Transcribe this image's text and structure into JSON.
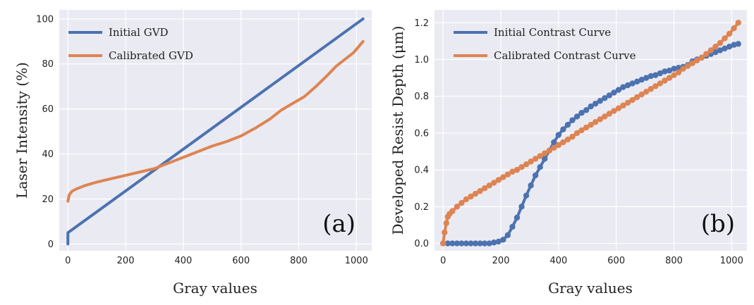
{
  "colors": {
    "initial": "#4c72b0",
    "calibrated": "#dd8452",
    "plot_bg": "#eaeaf2",
    "grid": "#ffffff"
  },
  "chart_data": [
    {
      "type": "line",
      "panel": "(a)",
      "xlabel": "Gray values",
      "ylabel": "Laser Intensity (%)",
      "xlim": [
        -30,
        1053
      ],
      "ylim": [
        -3,
        104
      ],
      "xticks": [
        0,
        200,
        400,
        600,
        800,
        1000
      ],
      "yticks": [
        0,
        20,
        40,
        60,
        80,
        100
      ],
      "grid": true,
      "legend_position": "top-left",
      "series": [
        {
          "name": "Initial GVD",
          "color": "#4c72b0",
          "x": [
            0,
            0,
            1023
          ],
          "y": [
            0,
            5,
            100
          ]
        },
        {
          "name": "Calibrated GVD",
          "color": "#dd8452",
          "x": [
            0,
            5,
            15,
            30,
            60,
            100,
            150,
            200,
            250,
            300,
            340,
            400,
            450,
            500,
            550,
            600,
            650,
            700,
            740,
            780,
            820,
            860,
            900,
            930,
            960,
            990,
            1010,
            1023
          ],
          "y": [
            19,
            22,
            23.5,
            24.5,
            26,
            27.5,
            29,
            30.5,
            32,
            33.5,
            35.5,
            38.5,
            41,
            43.5,
            45.5,
            48,
            51.5,
            55.5,
            59.5,
            62.5,
            65.5,
            70,
            75,
            79,
            82,
            85,
            88,
            90
          ]
        }
      ]
    },
    {
      "type": "line",
      "panel": "(b)",
      "xlabel": "Gray values",
      "ylabel": "Developed Resist Depth (μm)",
      "xlim": [
        -30,
        1053
      ],
      "ylim": [
        -0.04,
        1.27
      ],
      "xticks": [
        0,
        200,
        400,
        600,
        800,
        1000
      ],
      "yticks": [
        0.0,
        0.2,
        0.4,
        0.6,
        0.8,
        1.0,
        1.2
      ],
      "ytick_labels": [
        "0.0",
        "0.2",
        "0.4",
        "0.6",
        "0.8",
        "1.0",
        "1.2"
      ],
      "grid": true,
      "legend_position": "top-left",
      "markers": true,
      "series": [
        {
          "name": "Initial Contrast Curve",
          "color": "#4c72b0",
          "x": [
            0,
            16,
            32,
            48,
            64,
            80,
            96,
            112,
            128,
            144,
            160,
            176,
            192,
            208,
            224,
            240,
            256,
            272,
            288,
            304,
            320,
            336,
            352,
            368,
            384,
            400,
            416,
            432,
            448,
            464,
            480,
            496,
            512,
            528,
            544,
            560,
            576,
            592,
            608,
            624,
            640,
            656,
            672,
            688,
            704,
            720,
            736,
            752,
            768,
            784,
            800,
            816,
            832,
            848,
            864,
            880,
            896,
            912,
            928,
            944,
            960,
            976,
            992,
            1008,
            1023
          ],
          "y": [
            0,
            0,
            0,
            0,
            0,
            0,
            0,
            0,
            0,
            0,
            0,
            0.005,
            0.01,
            0.02,
            0.045,
            0.09,
            0.14,
            0.2,
            0.26,
            0.315,
            0.37,
            0.415,
            0.46,
            0.505,
            0.55,
            0.59,
            0.62,
            0.645,
            0.67,
            0.69,
            0.71,
            0.725,
            0.745,
            0.76,
            0.775,
            0.79,
            0.805,
            0.82,
            0.835,
            0.85,
            0.86,
            0.87,
            0.88,
            0.89,
            0.9,
            0.91,
            0.915,
            0.925,
            0.935,
            0.94,
            0.95,
            0.955,
            0.96,
            0.97,
            0.99,
            1.0,
            1.01,
            1.02,
            1.03,
            1.04,
            1.05,
            1.06,
            1.07,
            1.08,
            1.085
          ]
        },
        {
          "name": "Calibrated Contrast Curve",
          "color": "#dd8452",
          "x": [
            0,
            5,
            11,
            16,
            22,
            32,
            48,
            64,
            80,
            96,
            112,
            128,
            144,
            160,
            176,
            192,
            208,
            224,
            240,
            256,
            272,
            288,
            304,
            320,
            336,
            352,
            368,
            384,
            400,
            416,
            432,
            448,
            464,
            480,
            496,
            512,
            528,
            544,
            560,
            576,
            592,
            608,
            624,
            640,
            656,
            672,
            688,
            704,
            720,
            736,
            752,
            768,
            784,
            800,
            816,
            832,
            848,
            864,
            880,
            896,
            912,
            928,
            944,
            960,
            976,
            992,
            1008,
            1023
          ],
          "y": [
            0,
            0.06,
            0.11,
            0.145,
            0.16,
            0.175,
            0.2,
            0.22,
            0.24,
            0.255,
            0.27,
            0.285,
            0.3,
            0.315,
            0.33,
            0.345,
            0.36,
            0.375,
            0.39,
            0.4,
            0.415,
            0.43,
            0.445,
            0.46,
            0.475,
            0.49,
            0.505,
            0.52,
            0.535,
            0.55,
            0.565,
            0.58,
            0.6,
            0.615,
            0.63,
            0.645,
            0.66,
            0.675,
            0.69,
            0.705,
            0.72,
            0.735,
            0.75,
            0.765,
            0.78,
            0.795,
            0.81,
            0.825,
            0.84,
            0.855,
            0.87,
            0.885,
            0.9,
            0.915,
            0.93,
            0.95,
            0.965,
            0.98,
            0.995,
            1.01,
            1.03,
            1.05,
            1.07,
            1.09,
            1.115,
            1.14,
            1.17,
            1.2
          ]
        }
      ]
    }
  ]
}
